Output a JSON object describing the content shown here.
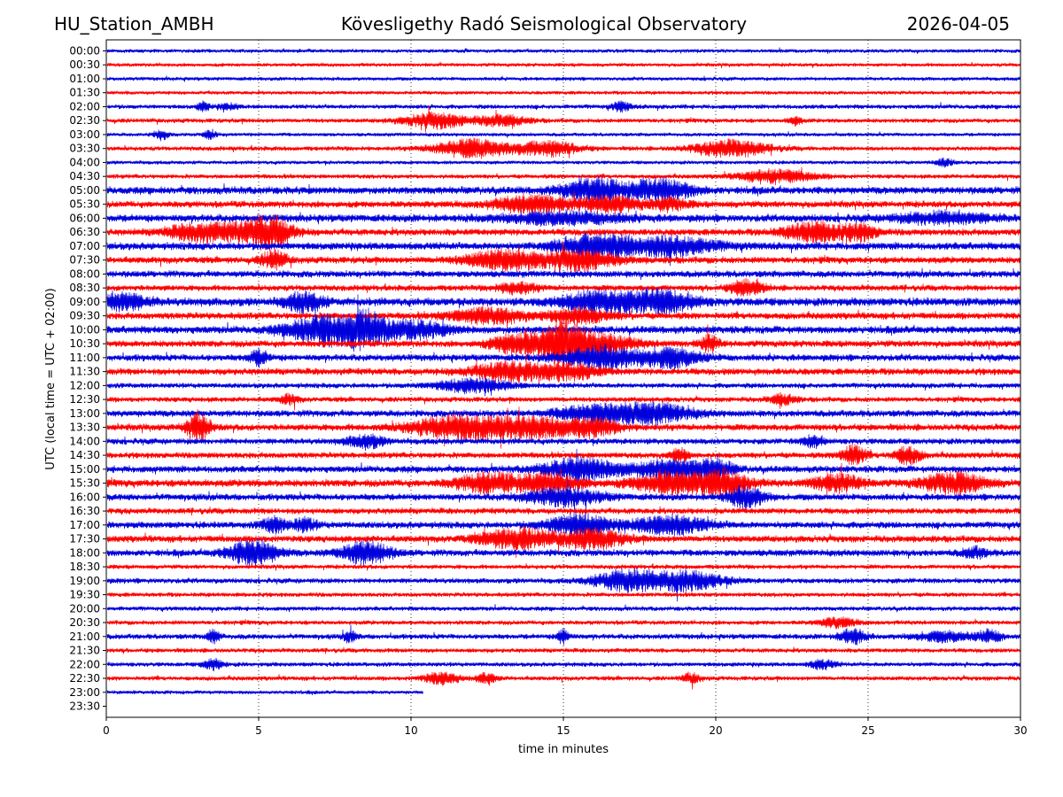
{
  "header": {
    "station": "HU_Station_AMBH",
    "observatory": "Kövesligethy Radó Seismological Observatory",
    "date": "2026-04-05"
  },
  "chart_data": {
    "type": "line",
    "title": "Kövesligethy Radó Seismological Observatory",
    "xlabel": "time in minutes",
    "ylabel": "UTC (local time = UTC + 02:00)",
    "xlim": [
      0,
      30
    ],
    "x_ticks": [
      0,
      5,
      10,
      15,
      20,
      25,
      30
    ],
    "x_tick_labels": [
      "0",
      "5",
      "10",
      "15",
      "20",
      "25",
      "30"
    ],
    "grid": "vertical dotted lines at x = 5, 10, 15, 20, 25",
    "colors": {
      "even_row": "#0000dd",
      "odd_row": "#ff0000"
    },
    "rows": [
      {
        "label": "00:00",
        "end": 30,
        "amp": 2.5,
        "bursts": []
      },
      {
        "label": "00:30",
        "end": 30,
        "amp": 2.5,
        "bursts": []
      },
      {
        "label": "01:00",
        "end": 30,
        "amp": 2.5,
        "bursts": []
      },
      {
        "label": "01:30",
        "end": 30,
        "amp": 2.5,
        "bursts": []
      },
      {
        "label": "02:00",
        "end": 30,
        "amp": 3,
        "bursts": [
          [
            3.2,
            0.2,
            5
          ],
          [
            4.0,
            0.3,
            3
          ],
          [
            16.9,
            0.3,
            5
          ]
        ]
      },
      {
        "label": "02:30",
        "end": 30,
        "amp": 3,
        "bursts": [
          [
            10.8,
            1.0,
            8
          ],
          [
            13.0,
            0.8,
            6
          ],
          [
            22.6,
            0.2,
            5
          ]
        ]
      },
      {
        "label": "03:00",
        "end": 30,
        "amp": 2.5,
        "bursts": [
          [
            1.8,
            0.2,
            6
          ],
          [
            3.4,
            0.2,
            5
          ]
        ]
      },
      {
        "label": "03:30",
        "end": 30,
        "amp": 3,
        "bursts": [
          [
            12.0,
            1.2,
            10
          ],
          [
            14.5,
            1.0,
            8
          ],
          [
            20.5,
            1.2,
            9
          ]
        ]
      },
      {
        "label": "04:00",
        "end": 30,
        "amp": 2.5,
        "bursts": [
          [
            27.5,
            0.3,
            4
          ]
        ]
      },
      {
        "label": "04:30",
        "end": 30,
        "amp": 3,
        "bursts": [
          [
            22.0,
            1.2,
            7
          ]
        ]
      },
      {
        "label": "05:00",
        "end": 30,
        "amp": 5,
        "bursts": [
          [
            16.0,
            1.0,
            12
          ],
          [
            18.2,
            1.0,
            12
          ]
        ]
      },
      {
        "label": "05:30",
        "end": 30,
        "amp": 4.5,
        "bursts": [
          [
            14.0,
            1.2,
            9
          ],
          [
            16.5,
            1.0,
            8
          ],
          [
            18.5,
            0.6,
            6
          ]
        ]
      },
      {
        "label": "06:00",
        "end": 30,
        "amp": 5,
        "bursts": [
          [
            15.0,
            2.0,
            6
          ],
          [
            27.5,
            1.5,
            6
          ]
        ]
      },
      {
        "label": "06:30",
        "end": 30,
        "amp": 4.5,
        "bursts": [
          [
            3.0,
            1.0,
            9
          ],
          [
            4.8,
            1.0,
            10
          ],
          [
            5.5,
            0.6,
            12
          ],
          [
            23.3,
            1.0,
            11
          ],
          [
            24.8,
            0.5,
            8
          ]
        ]
      },
      {
        "label": "07:00",
        "end": 30,
        "amp": 5,
        "bursts": [
          [
            16.0,
            1.2,
            12
          ],
          [
            18.5,
            1.5,
            10
          ]
        ]
      },
      {
        "label": "07:30",
        "end": 30,
        "amp": 4.5,
        "bursts": [
          [
            5.5,
            0.4,
            10
          ],
          [
            13.0,
            1.2,
            10
          ],
          [
            15.5,
            1.2,
            10
          ]
        ]
      },
      {
        "label": "08:00",
        "end": 30,
        "amp": 4.5,
        "bursts": []
      },
      {
        "label": "08:30",
        "end": 30,
        "amp": 4,
        "bursts": [
          [
            13.5,
            0.6,
            6
          ],
          [
            21.0,
            0.5,
            9
          ]
        ]
      },
      {
        "label": "09:00",
        "end": 30,
        "amp": 5.5,
        "bursts": [
          [
            0.5,
            0.8,
            9
          ],
          [
            6.5,
            0.6,
            10
          ],
          [
            16.2,
            1.2,
            12
          ],
          [
            18.3,
            1.0,
            12
          ]
        ]
      },
      {
        "label": "09:30",
        "end": 30,
        "amp": 4.5,
        "bursts": [
          [
            12.5,
            1.2,
            8
          ],
          [
            15.5,
            1.0,
            8
          ]
        ]
      },
      {
        "label": "10:00",
        "end": 30,
        "amp": 5,
        "bursts": [
          [
            7.2,
            1.2,
            16
          ],
          [
            8.5,
            0.6,
            14
          ],
          [
            10.0,
            1.2,
            9
          ]
        ]
      },
      {
        "label": "10:30",
        "end": 30,
        "amp": 4.5,
        "bursts": [
          [
            13.5,
            0.8,
            12
          ],
          [
            14.9,
            0.6,
            20
          ],
          [
            16.0,
            1.2,
            12
          ],
          [
            19.8,
            0.3,
            9
          ]
        ]
      },
      {
        "label": "11:00",
        "end": 30,
        "amp": 4.5,
        "bursts": [
          [
            5.0,
            0.3,
            8
          ],
          [
            16.2,
            1.2,
            12
          ],
          [
            18.5,
            1.0,
            10
          ]
        ]
      },
      {
        "label": "11:30",
        "end": 30,
        "amp": 4.5,
        "bursts": [
          [
            13.2,
            1.2,
            10
          ],
          [
            15.2,
            1.0,
            8
          ]
        ]
      },
      {
        "label": "12:00",
        "end": 30,
        "amp": 3.5,
        "bursts": [
          [
            12.0,
            1.2,
            7
          ]
        ]
      },
      {
        "label": "12:30",
        "end": 30,
        "amp": 3.5,
        "bursts": [
          [
            6.0,
            0.3,
            5
          ],
          [
            22.2,
            0.4,
            6
          ]
        ]
      },
      {
        "label": "13:00",
        "end": 30,
        "amp": 4.5,
        "bursts": [
          [
            16.0,
            1.2,
            9
          ],
          [
            18.0,
            1.2,
            10
          ]
        ]
      },
      {
        "label": "13:30",
        "end": 30,
        "amp": 4.5,
        "bursts": [
          [
            3.0,
            0.4,
            14
          ],
          [
            11.5,
            1.5,
            12
          ],
          [
            14.0,
            1.5,
            10
          ],
          [
            16.0,
            0.8,
            8
          ]
        ]
      },
      {
        "label": "14:00",
        "end": 30,
        "amp": 4,
        "bursts": [
          [
            8.5,
            0.6,
            7
          ],
          [
            23.2,
            0.3,
            7
          ]
        ]
      },
      {
        "label": "14:30",
        "end": 30,
        "amp": 4,
        "bursts": [
          [
            18.8,
            0.3,
            7
          ],
          [
            24.5,
            0.4,
            11
          ],
          [
            26.3,
            0.4,
            10
          ]
        ]
      },
      {
        "label": "15:00",
        "end": 30,
        "amp": 4.5,
        "bursts": [
          [
            15.6,
            1.2,
            12
          ],
          [
            18.5,
            1.2,
            10
          ],
          [
            20.0,
            0.6,
            8
          ]
        ]
      },
      {
        "label": "15:30",
        "end": 30,
        "amp": 5,
        "bursts": [
          [
            12.5,
            1.0,
            10
          ],
          [
            14.5,
            1.0,
            10
          ],
          [
            18.5,
            1.2,
            11
          ],
          [
            20.3,
            0.8,
            12
          ],
          [
            24.0,
            0.8,
            9
          ],
          [
            27.8,
            1.0,
            11
          ]
        ]
      },
      {
        "label": "16:00",
        "end": 30,
        "amp": 4.5,
        "bursts": [
          [
            15.0,
            1.2,
            9
          ],
          [
            21.0,
            0.6,
            11
          ]
        ]
      },
      {
        "label": "16:30",
        "end": 30,
        "amp": 4,
        "bursts": []
      },
      {
        "label": "17:00",
        "end": 30,
        "amp": 4.5,
        "bursts": [
          [
            5.5,
            0.4,
            8
          ],
          [
            6.5,
            0.4,
            7
          ],
          [
            15.5,
            1.0,
            12
          ],
          [
            18.5,
            1.2,
            10
          ]
        ]
      },
      {
        "label": "17:30",
        "end": 30,
        "amp": 4.5,
        "bursts": [
          [
            13.5,
            1.2,
            11
          ],
          [
            16.0,
            1.0,
            10
          ]
        ]
      },
      {
        "label": "18:00",
        "end": 30,
        "amp": 4.5,
        "bursts": [
          [
            4.8,
            0.8,
            14
          ],
          [
            8.5,
            0.8,
            12
          ],
          [
            28.5,
            0.4,
            5
          ]
        ]
      },
      {
        "label": "18:30",
        "end": 30,
        "amp": 3,
        "bursts": []
      },
      {
        "label": "19:00",
        "end": 30,
        "amp": 3.5,
        "bursts": [
          [
            17.0,
            1.0,
            11
          ],
          [
            19.0,
            1.2,
            11
          ]
        ]
      },
      {
        "label": "19:30",
        "end": 30,
        "amp": 3,
        "bursts": []
      },
      {
        "label": "20:00",
        "end": 30,
        "amp": 3,
        "bursts": []
      },
      {
        "label": "20:30",
        "end": 30,
        "amp": 3,
        "bursts": [
          [
            24.0,
            0.6,
            5
          ]
        ]
      },
      {
        "label": "21:00",
        "end": 30,
        "amp": 3.5,
        "bursts": [
          [
            3.5,
            0.2,
            7
          ],
          [
            8.0,
            0.2,
            6
          ],
          [
            15.0,
            0.2,
            8
          ],
          [
            24.5,
            0.4,
            9
          ],
          [
            27.5,
            1.0,
            5
          ],
          [
            29.0,
            0.4,
            6
          ]
        ]
      },
      {
        "label": "21:30",
        "end": 30,
        "amp": 3,
        "bursts": []
      },
      {
        "label": "22:00",
        "end": 30,
        "amp": 3,
        "bursts": [
          [
            3.5,
            0.3,
            6
          ],
          [
            23.5,
            0.4,
            5
          ]
        ]
      },
      {
        "label": "22:30",
        "end": 30,
        "amp": 3,
        "bursts": [
          [
            11.0,
            0.6,
            6
          ],
          [
            12.5,
            0.3,
            6
          ],
          [
            19.2,
            0.3,
            5
          ]
        ]
      },
      {
        "label": "23:00",
        "end": 10.4,
        "amp": 2.5,
        "bursts": []
      },
      {
        "label": "23:30",
        "end": 0,
        "amp": 0,
        "bursts": []
      }
    ]
  }
}
